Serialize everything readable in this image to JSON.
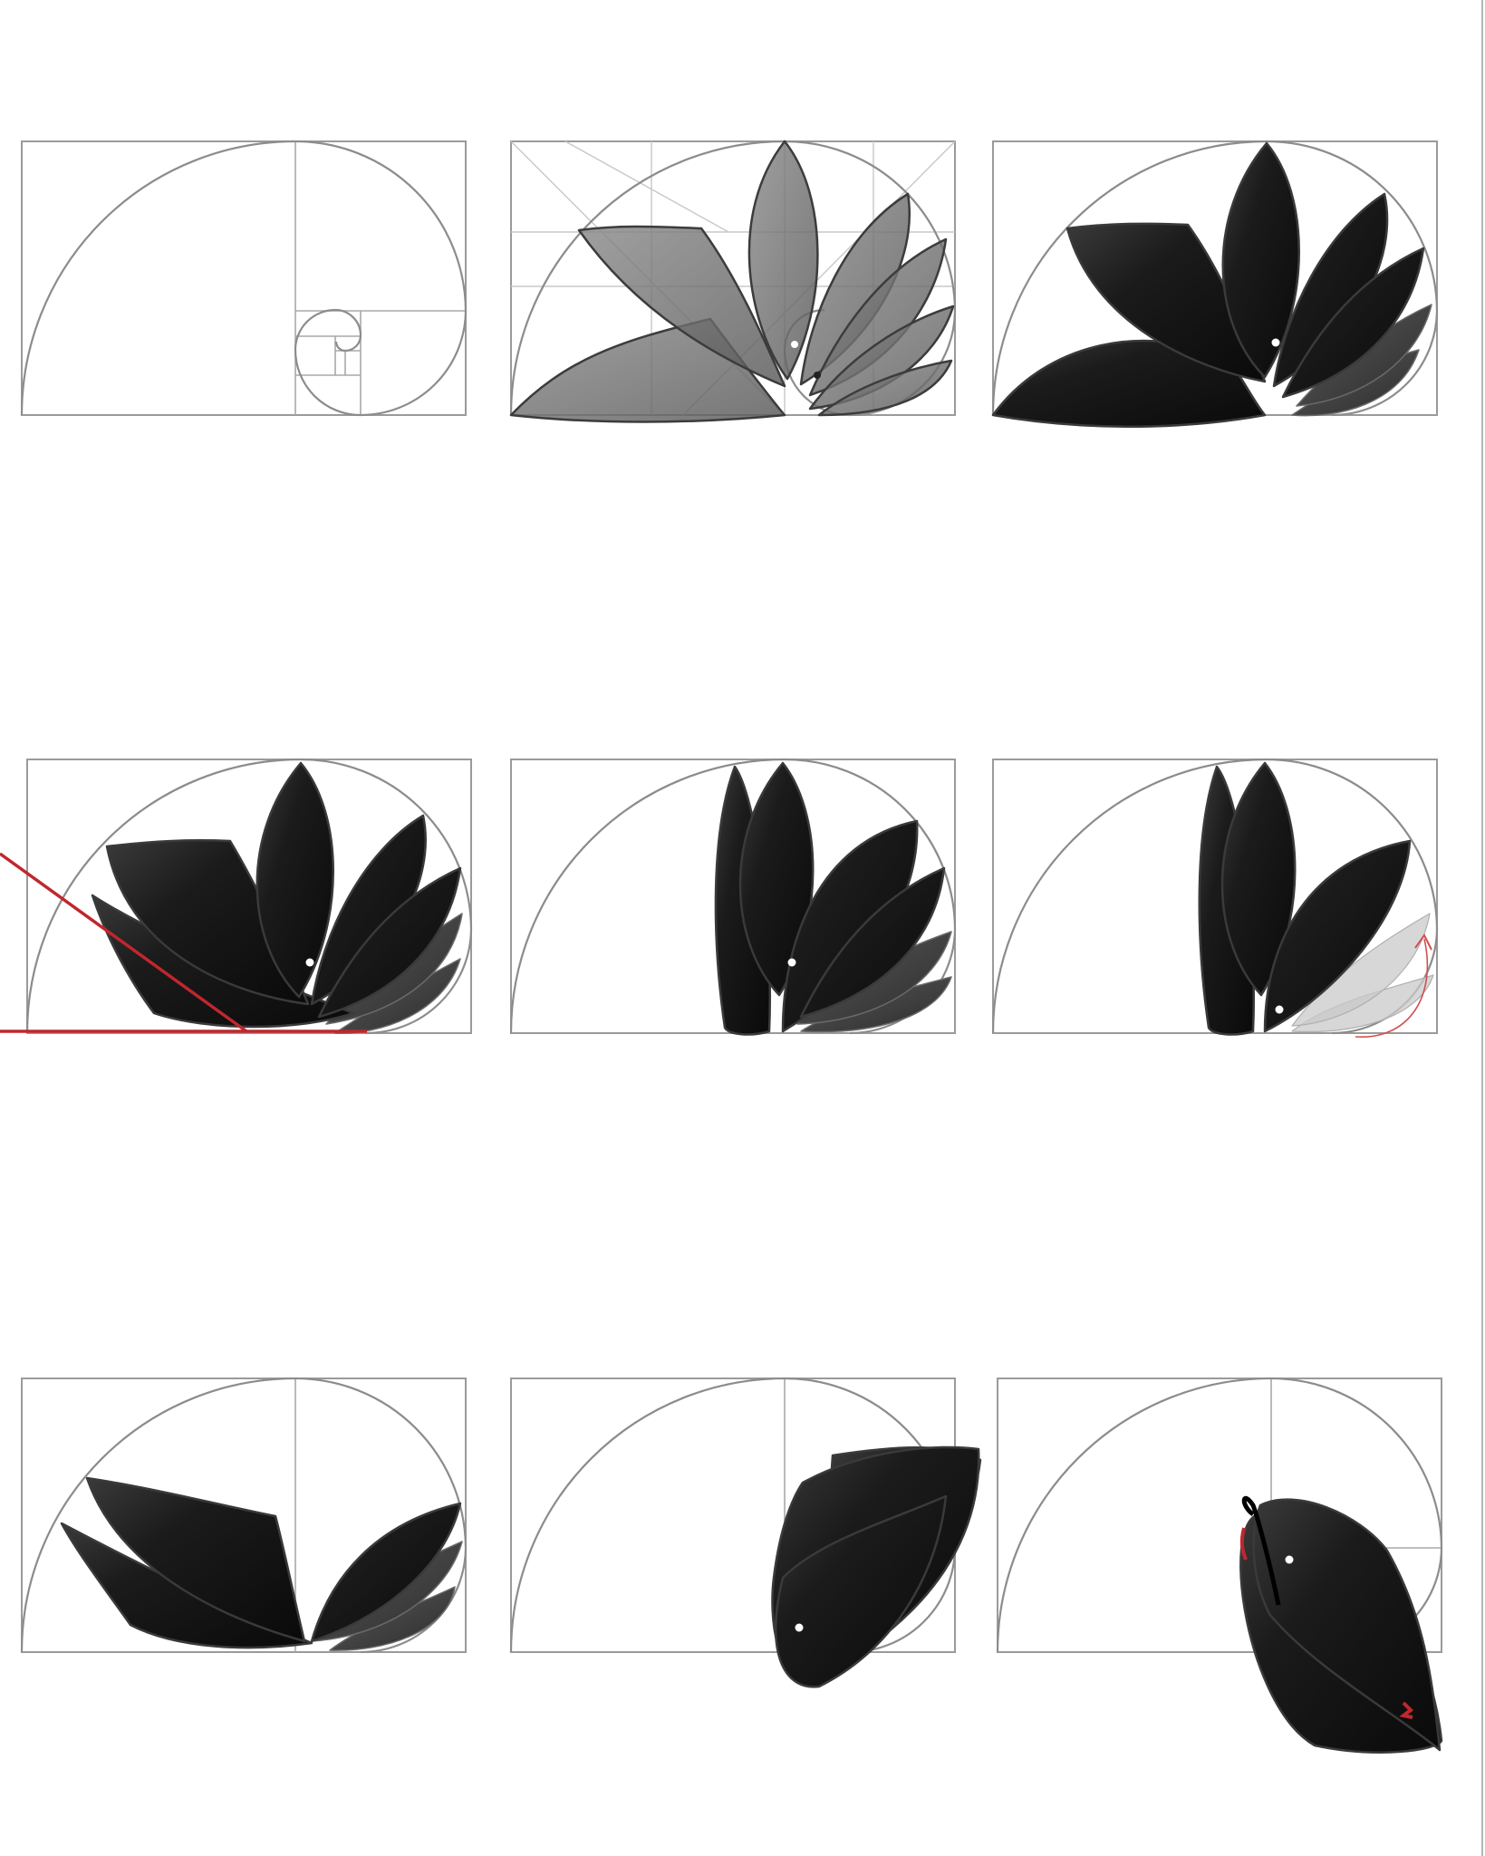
{
  "figure": {
    "panel_count": 9,
    "layout": "3x3 grid",
    "colors": {
      "background": "#ffffff",
      "guides": "#9a9a9a",
      "petal_fill": "#1c1c1c",
      "overlay_petals": "#6e6e6e",
      "accent_red": "#c0272d"
    }
  }
}
